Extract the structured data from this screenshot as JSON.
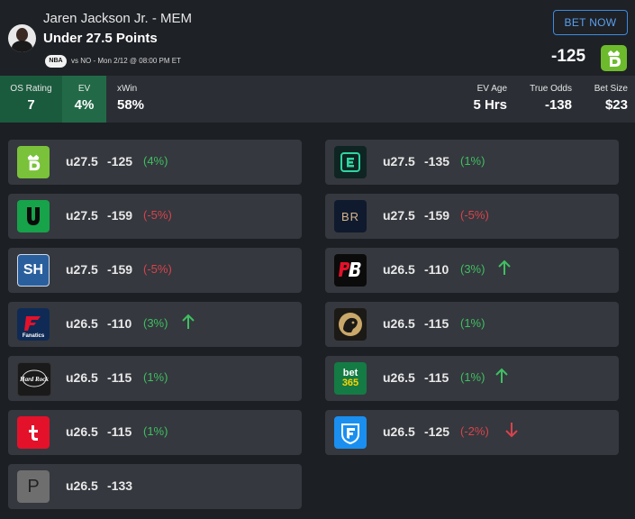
{
  "player": {
    "name": "Jaren Jackson Jr. - MEM",
    "market": "Under 27.5 Points",
    "league": "NBA",
    "game_info": "vs NO - Mon 2/12 @ 08:00 PM ET"
  },
  "header": {
    "bet_now_label": "BET NOW",
    "best_odds": "-125",
    "best_book_icon": "draftkings-logo"
  },
  "stats": {
    "os_rating": {
      "label": "OS Rating",
      "value": "7"
    },
    "ev": {
      "label": "EV",
      "value": "4%"
    },
    "xwin": {
      "label": "xWin",
      "value": "58%"
    },
    "ev_age": {
      "label": "EV Age",
      "value": "5 Hrs"
    },
    "true_odds": {
      "label": "True Odds",
      "value": "-138"
    },
    "bet_size": {
      "label": "Bet Size",
      "value": "$23"
    }
  },
  "colors": {
    "positive": "#3fbf62",
    "negative": "#d8434d",
    "accent": "#3c8be0"
  },
  "books_left": [
    {
      "book": "draftkings-logo",
      "line": "u27.5",
      "odds": "-125",
      "ev": "(4%)",
      "ev_sign": "pos",
      "trend": ""
    },
    {
      "book": "unibet-logo",
      "line": "u27.5",
      "odds": "-159",
      "ev": "(-5%)",
      "ev_sign": "neg",
      "trend": ""
    },
    {
      "book": "sportshub-logo",
      "line": "u27.5",
      "odds": "-159",
      "ev": "(-5%)",
      "ev_sign": "neg",
      "trend": ""
    },
    {
      "book": "fanatics-logo",
      "line": "u26.5",
      "odds": "-110",
      "ev": "(3%)",
      "ev_sign": "pos",
      "trend": "up"
    },
    {
      "book": "hardrock-logo",
      "line": "u26.5",
      "odds": "-115",
      "ev": "(1%)",
      "ev_sign": "pos",
      "trend": ""
    },
    {
      "book": "tipico-logo",
      "line": "u26.5",
      "odds": "-115",
      "ev": "(1%)",
      "ev_sign": "pos",
      "trend": ""
    },
    {
      "book": "p-book-logo",
      "line": "u26.5",
      "odds": "-133",
      "ev": "",
      "ev_sign": "",
      "trend": ""
    }
  ],
  "books_right": [
    {
      "book": "espnbet-logo",
      "line": "u27.5",
      "odds": "-135",
      "ev": "(1%)",
      "ev_sign": "pos",
      "trend": ""
    },
    {
      "book": "betrivers-logo",
      "line": "u27.5",
      "odds": "-159",
      "ev": "(-5%)",
      "ev_sign": "neg",
      "trend": ""
    },
    {
      "book": "pointsbet-logo",
      "line": "u26.5",
      "odds": "-110",
      "ev": "(3%)",
      "ev_sign": "pos",
      "trend": "up"
    },
    {
      "book": "betmgm-logo",
      "line": "u26.5",
      "odds": "-115",
      "ev": "(1%)",
      "ev_sign": "pos",
      "trend": ""
    },
    {
      "book": "bet365-logo",
      "line": "u26.5",
      "odds": "-115",
      "ev": "(1%)",
      "ev_sign": "pos",
      "trend": "up"
    },
    {
      "book": "fanduel-logo",
      "line": "u26.5",
      "odds": "-125",
      "ev": "(-2%)",
      "ev_sign": "neg",
      "trend": "down"
    }
  ],
  "logo_text": {
    "sportshub": "SH",
    "betrivers": "BR",
    "p_book": "P",
    "fanatics": "Fanatics",
    "hardrock": "Hard Rock",
    "bet365_top": "bet",
    "bet365_bottom": "365"
  }
}
